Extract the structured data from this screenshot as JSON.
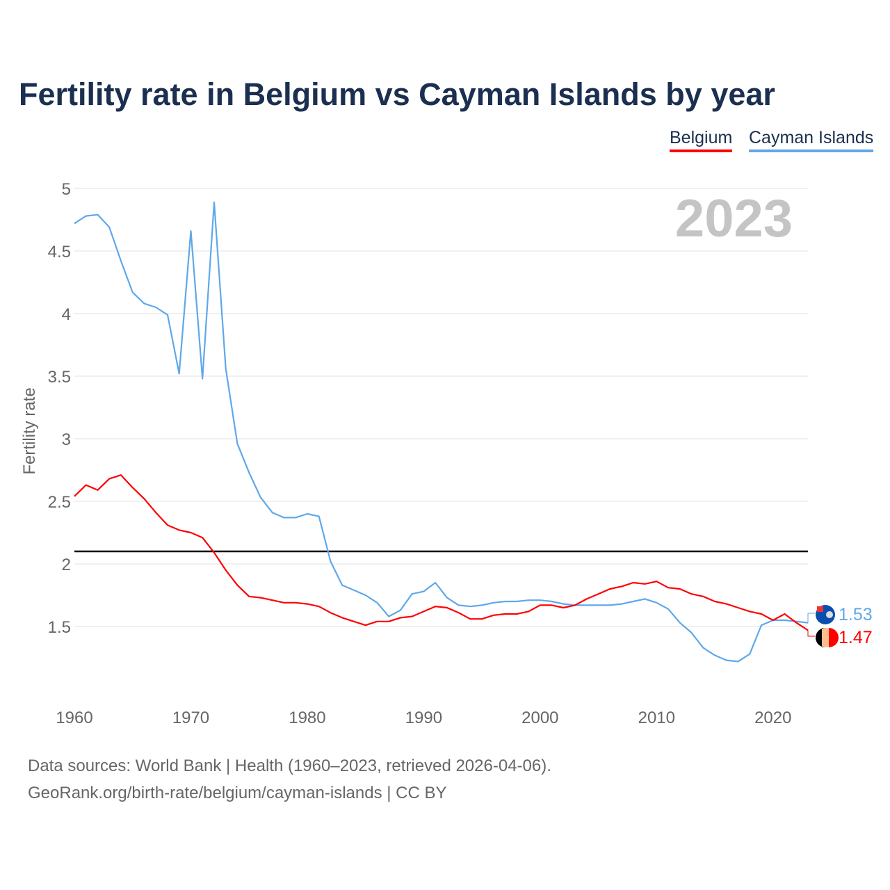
{
  "chart_data": {
    "type": "line",
    "title": "Fertility rate in Belgium vs Cayman Islands by year",
    "xlabel": "",
    "ylabel": "Fertility rate",
    "xlim": [
      1960,
      2023
    ],
    "ylim": [
      1,
      5
    ],
    "x_ticks": [
      1960,
      1970,
      1980,
      1990,
      2000,
      2010,
      2020
    ],
    "y_ticks": [
      1.5,
      2,
      2.5,
      3,
      3.5,
      4,
      4.5,
      5
    ],
    "y_tick_labels": [
      "1.5",
      "2",
      "2.5",
      "3",
      "3.5",
      "4",
      "4.5",
      "5"
    ],
    "grid": true,
    "legend_placement": "top-right",
    "reference_line": 2.1,
    "year_label": "2023",
    "x": [
      1960,
      1961,
      1962,
      1963,
      1964,
      1965,
      1966,
      1967,
      1968,
      1969,
      1970,
      1971,
      1972,
      1973,
      1974,
      1975,
      1976,
      1977,
      1978,
      1979,
      1980,
      1981,
      1982,
      1983,
      1984,
      1985,
      1986,
      1987,
      1988,
      1989,
      1990,
      1991,
      1992,
      1993,
      1994,
      1995,
      1996,
      1997,
      1998,
      1999,
      2000,
      2001,
      2002,
      2003,
      2004,
      2005,
      2006,
      2007,
      2008,
      2009,
      2010,
      2011,
      2012,
      2013,
      2014,
      2015,
      2016,
      2017,
      2018,
      2019,
      2020,
      2021,
      2022,
      2023
    ],
    "series": [
      {
        "name": "Belgium",
        "color": "#ff0000",
        "end_label": "1.47",
        "values": [
          2.54,
          2.63,
          2.59,
          2.68,
          2.71,
          2.61,
          2.52,
          2.41,
          2.31,
          2.27,
          2.25,
          2.21,
          2.09,
          1.95,
          1.83,
          1.74,
          1.73,
          1.71,
          1.69,
          1.69,
          1.68,
          1.66,
          1.61,
          1.57,
          1.54,
          1.51,
          1.54,
          1.54,
          1.57,
          1.58,
          1.62,
          1.66,
          1.65,
          1.61,
          1.56,
          1.56,
          1.59,
          1.6,
          1.6,
          1.62,
          1.67,
          1.67,
          1.65,
          1.67,
          1.72,
          1.76,
          1.8,
          1.82,
          1.85,
          1.84,
          1.86,
          1.81,
          1.8,
          1.76,
          1.74,
          1.7,
          1.68,
          1.65,
          1.62,
          1.6,
          1.55,
          1.6,
          1.53,
          1.47
        ]
      },
      {
        "name": "Cayman Islands",
        "color": "#5ea8ea",
        "end_label": "1.53",
        "values": [
          4.72,
          4.78,
          4.79,
          4.69,
          4.42,
          4.17,
          4.08,
          4.05,
          3.99,
          3.52,
          4.66,
          3.48,
          4.89,
          3.56,
          2.96,
          2.73,
          2.53,
          2.41,
          2.37,
          2.37,
          2.4,
          2.38,
          2.02,
          1.83,
          1.79,
          1.75,
          1.69,
          1.58,
          1.63,
          1.76,
          1.78,
          1.85,
          1.73,
          1.67,
          1.66,
          1.67,
          1.69,
          1.7,
          1.7,
          1.71,
          1.71,
          1.7,
          1.68,
          1.67,
          1.67,
          1.67,
          1.67,
          1.68,
          1.7,
          1.72,
          1.69,
          1.64,
          1.53,
          1.45,
          1.33,
          1.27,
          1.23,
          1.22,
          1.28,
          1.51,
          1.55,
          1.55,
          1.54,
          1.53
        ]
      }
    ]
  },
  "source_line1": "Data sources: World Bank | Health (1960–2023, retrieved 2026-04-06).",
  "source_line2": "GeoRank.org/birth-rate/belgium/cayman-islands | CC BY"
}
